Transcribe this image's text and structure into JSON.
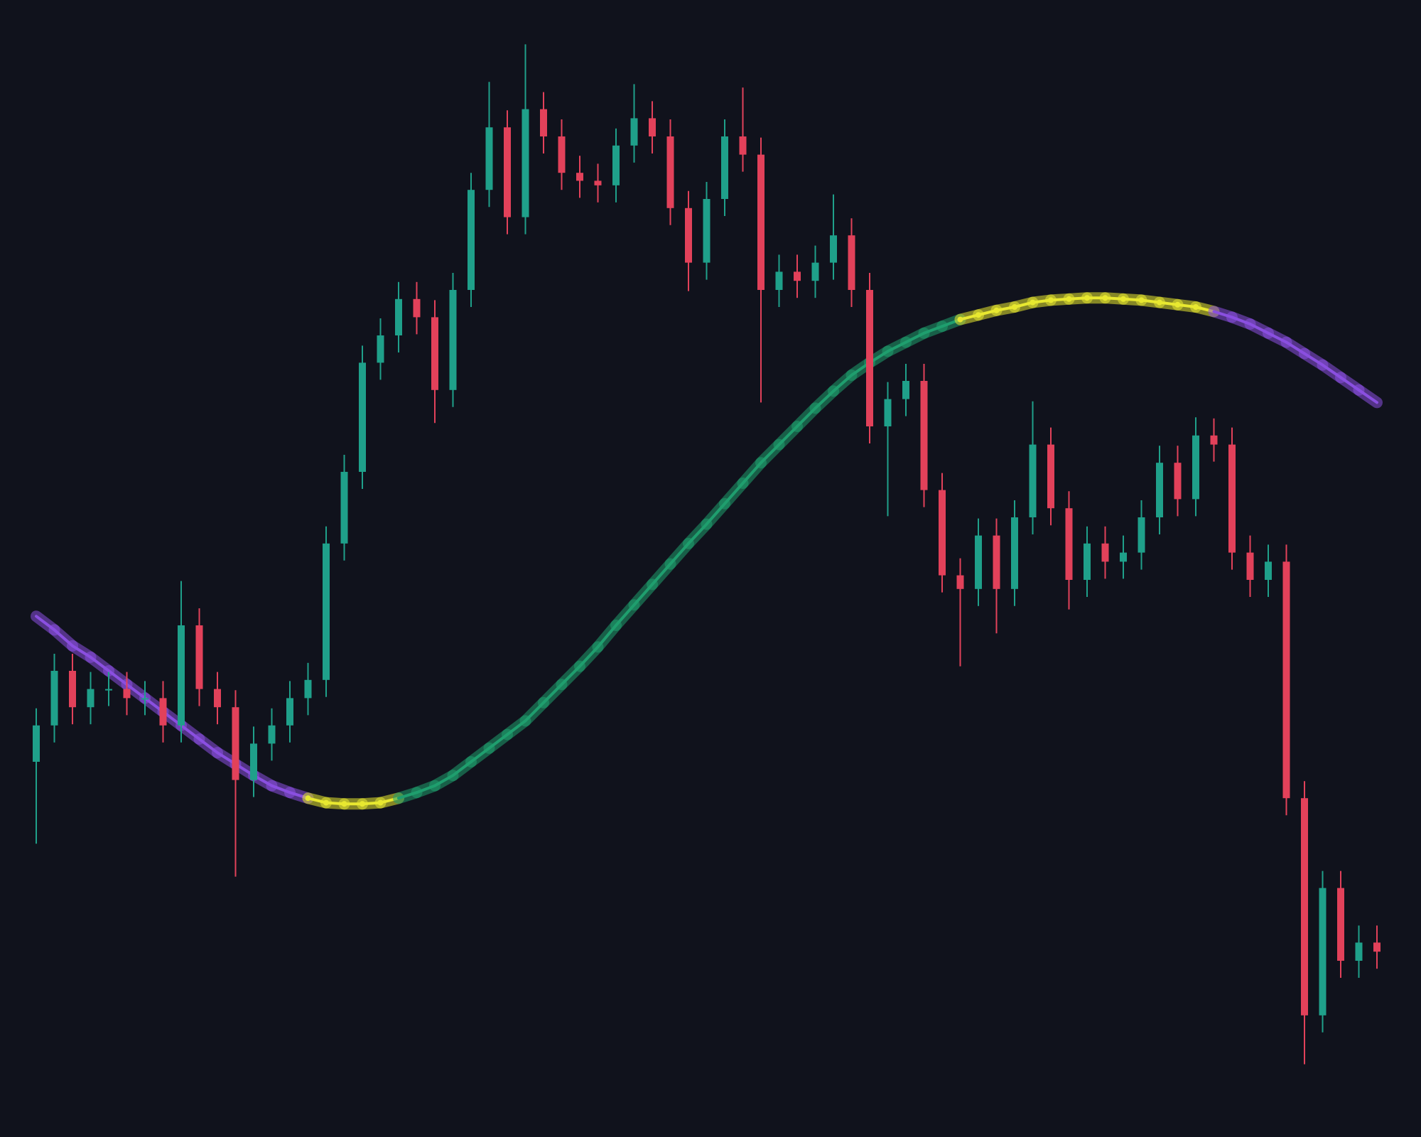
{
  "chart_data": {
    "type": "candlestick",
    "ylim": [
      0,
      100
    ],
    "up_color": "#1fa08a",
    "down_color": "#e2415a",
    "open": [
      33.0,
      36.2,
      41.0,
      37.8,
      39.4,
      39.4,
      38.6,
      38.6,
      36.2,
      45.0,
      39.4,
      37.8,
      31.4,
      34.6,
      36.2,
      38.6,
      40.2,
      52.2,
      58.5,
      68.1,
      70.5,
      73.7,
      72.1,
      65.7,
      74.5,
      83.3,
      88.8,
      80.9,
      90.4,
      88.0,
      84.8,
      84.1,
      83.7,
      87.2,
      89.6,
      88.0,
      81.7,
      76.9,
      82.5,
      88.0,
      86.4,
      74.5,
      76.1,
      75.3,
      76.9,
      79.3,
      74.5,
      62.5,
      64.9,
      66.5,
      56.9,
      49.4,
      48.2,
      52.9,
      48.2,
      54.5,
      60.9,
      55.3,
      49.0,
      52.2,
      50.6,
      51.4,
      54.5,
      59.3,
      56.1,
      61.7,
      60.9,
      51.4,
      49.0,
      50.6,
      29.8,
      10.7,
      21.9,
      15.5,
      17.1
    ],
    "high": [
      37.7,
      42.5,
      42.5,
      40.9,
      40.9,
      40.9,
      40.1,
      40.1,
      48.9,
      46.5,
      40.9,
      39.3,
      36.1,
      37.7,
      40.1,
      41.7,
      53.7,
      60.0,
      69.6,
      72.0,
      75.2,
      75.2,
      73.6,
      76.0,
      84.8,
      92.8,
      90.3,
      96.1,
      91.9,
      89.5,
      86.3,
      85.6,
      88.7,
      92.6,
      91.1,
      89.5,
      83.2,
      84.0,
      89.5,
      92.3,
      87.9,
      77.6,
      77.6,
      78.4,
      82.9,
      80.8,
      76.0,
      66.4,
      68.0,
      68.0,
      58.4,
      50.9,
      54.4,
      54.4,
      56.0,
      64.7,
      62.4,
      56.8,
      53.7,
      53.7,
      52.9,
      56.0,
      60.8,
      60.8,
      63.3,
      63.2,
      62.4,
      52.9,
      52.1,
      52.1,
      31.3,
      23.4,
      23.4,
      18.6,
      18.6
    ],
    "low": [
      25.8,
      34.7,
      36.3,
      36.3,
      37.9,
      37.1,
      37.1,
      34.7,
      34.7,
      37.9,
      36.3,
      22.9,
      29.9,
      33.1,
      34.7,
      37.1,
      38.7,
      50.7,
      57.0,
      66.6,
      69.0,
      70.6,
      62.8,
      64.2,
      73.0,
      81.8,
      79.4,
      79.4,
      86.5,
      83.3,
      82.6,
      82.2,
      82.2,
      85.7,
      86.5,
      80.2,
      74.4,
      75.4,
      81.0,
      84.9,
      64.6,
      73.0,
      73.8,
      73.8,
      75.4,
      73.0,
      61.0,
      54.6,
      63.4,
      55.4,
      47.9,
      41.4,
      46.7,
      44.3,
      46.7,
      53.0,
      53.8,
      46.4,
      47.5,
      49.1,
      49.1,
      49.9,
      53.0,
      54.6,
      54.6,
      59.4,
      49.9,
      47.5,
      47.5,
      28.3,
      6.4,
      9.2,
      14.0,
      14.0,
      14.8
    ],
    "close": [
      36.2,
      41.0,
      37.8,
      39.4,
      39.4,
      38.6,
      38.6,
      36.2,
      45.0,
      39.4,
      37.8,
      31.4,
      34.6,
      36.2,
      38.6,
      40.2,
      52.2,
      58.5,
      68.1,
      70.5,
      73.7,
      72.1,
      65.7,
      74.5,
      83.3,
      88.8,
      80.9,
      90.4,
      88.0,
      84.8,
      84.1,
      83.7,
      87.2,
      89.6,
      88.0,
      81.7,
      76.9,
      82.5,
      88.0,
      86.4,
      74.5,
      76.1,
      75.3,
      76.9,
      79.3,
      74.5,
      62.5,
      64.9,
      66.5,
      56.9,
      49.4,
      48.2,
      52.9,
      48.2,
      54.5,
      60.9,
      55.3,
      49.0,
      52.2,
      50.6,
      51.4,
      54.5,
      59.3,
      56.1,
      61.7,
      60.9,
      51.4,
      49.0,
      50.6,
      29.8,
      10.7,
      21.9,
      15.5,
      17.1,
      16.3
    ],
    "trend_line": {
      "falling_color": "#8a4fe0",
      "rising_color": "#1f9e6e",
      "flat_color": "#e8e830",
      "values": [
        45.8,
        44.6,
        43.2,
        42.2,
        41.0,
        39.8,
        38.6,
        37.4,
        36.2,
        35.0,
        33.8,
        32.8,
        31.8,
        30.9,
        30.3,
        29.8,
        29.4,
        29.3,
        29.3,
        29.4,
        29.8,
        30.3,
        30.9,
        31.8,
        33.0,
        34.2,
        35.4,
        36.6,
        38.2,
        39.8,
        41.4,
        43.1,
        45.0,
        46.8,
        48.6,
        50.4,
        52.2,
        53.9,
        55.7,
        57.5,
        59.3,
        60.9,
        62.5,
        64.1,
        65.6,
        67.0,
        68.1,
        69.1,
        69.9,
        70.7,
        71.3,
        71.9,
        72.3,
        72.7,
        73.0,
        73.4,
        73.6,
        73.7,
        73.8,
        73.8,
        73.7,
        73.6,
        73.4,
        73.2,
        73.0,
        72.6,
        72.1,
        71.5,
        70.7,
        69.9,
        68.9,
        67.9,
        66.8,
        65.7,
        64.6
      ]
    }
  }
}
